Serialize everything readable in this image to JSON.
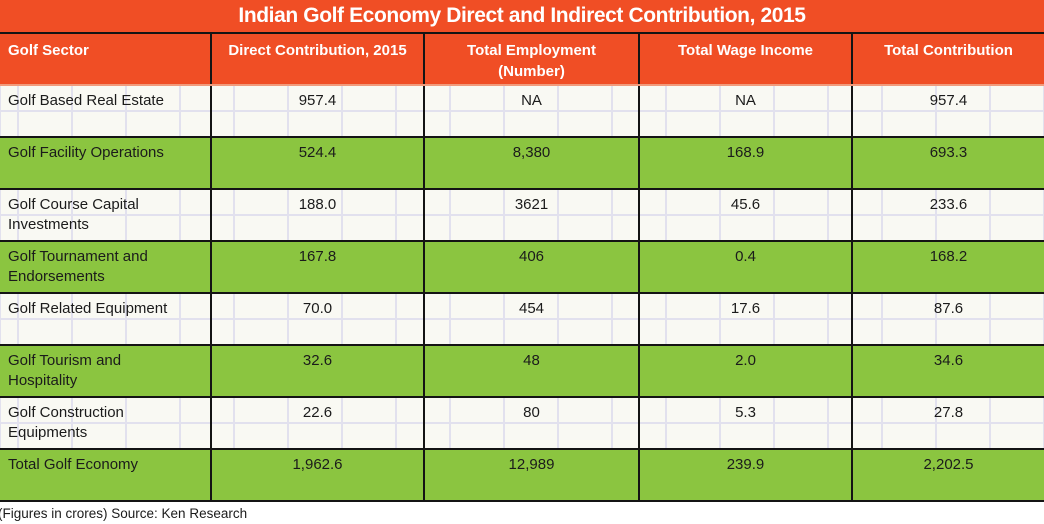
{
  "title": "Indian Golf Economy Direct and Indirect Contribution, 2015",
  "footer_note": "(Figures in crores) Source: Ken Research",
  "colors": {
    "accent_orange": "#f04e25",
    "row_green": "#8bc540",
    "row_offwhite": "#f9f9f3",
    "spreadsheet_gridline": "#e2e1ee",
    "table_border": "#141414",
    "header_divider_salmon": "#f19b7c",
    "header_text": "#ffffff",
    "body_text": "#1b1b1b"
  },
  "chart_data": {
    "type": "table",
    "title": "Indian Golf Economy Direct and Indirect Contribution, 2015",
    "columns": [
      "Golf Sector",
      "Direct Contribution, 2015",
      "Total Employment (Number)",
      "Total Wage Income",
      "Total Contribution"
    ],
    "rows": [
      [
        "Golf Based Real Estate",
        "957.4",
        "NA",
        "NA",
        "957.4"
      ],
      [
        "Golf Facility Operations",
        "524.4",
        "8,380",
        "168.9",
        "693.3"
      ],
      [
        "Golf Course Capital Investments",
        "188.0",
        "3621",
        "45.6",
        "233.6"
      ],
      [
        "Golf Tournament and Endorsements",
        "167.8",
        "406",
        "0.4",
        "168.2"
      ],
      [
        "Golf Related Equipment",
        "70.0",
        "454",
        "17.6",
        "87.6"
      ],
      [
        "Golf Tourism and Hospitality",
        "32.6",
        "48",
        "2.0",
        "34.6"
      ],
      [
        "Golf Construction Equipments",
        "22.6",
        "80",
        "5.3",
        "27.8"
      ],
      [
        "Total Golf Economy",
        "1,962.6",
        "12,989",
        "239.9",
        "2,202.5"
      ]
    ],
    "note": "(Figures in crores) Source: Ken Research",
    "layout": {
      "highlighted_green_rows": [
        1,
        3,
        5,
        7
      ],
      "numeric_columns_alignment": "center",
      "sector_column_alignment": "left",
      "background_grid": "spreadsheet gridlines visible behind white rows"
    }
  }
}
